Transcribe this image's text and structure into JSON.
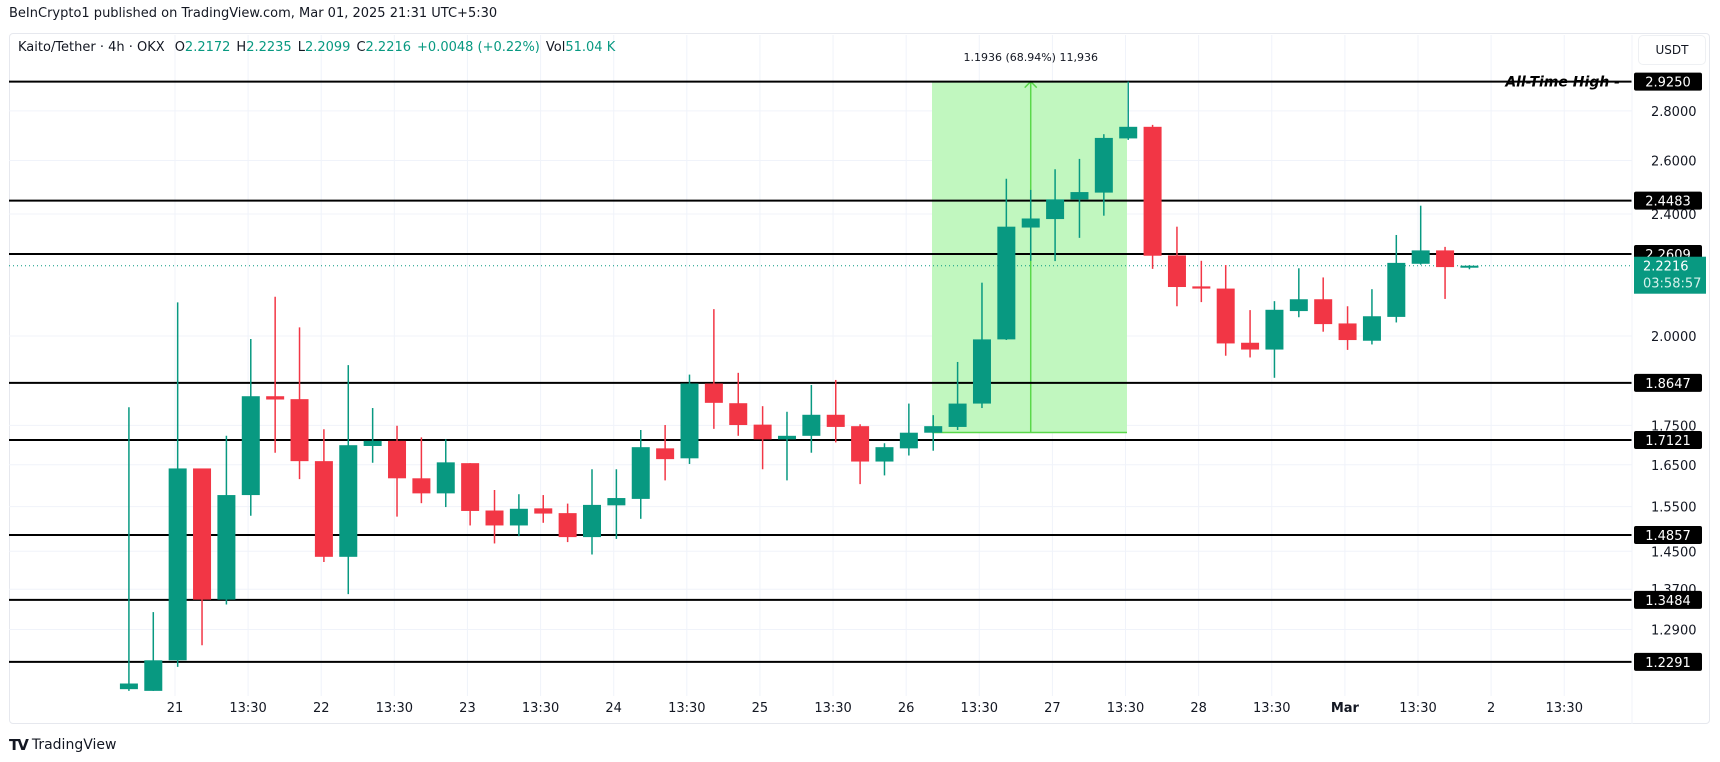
{
  "header": {
    "published": "BeInCrypto1 published on TradingView.com, Mar 01, 2025 21:31 UTC+5:30"
  },
  "legend": {
    "symbol": "Kaito/Tether · 4h · OKX",
    "open_label": "O",
    "open": "2.2172",
    "high_label": "H",
    "high": "2.2235",
    "low_label": "L",
    "low": "2.2099",
    "close_label": "C",
    "close": "2.2216",
    "change": "+0.0048 (+0.22%)",
    "vol_label": "Vol",
    "vol": "51.04 K"
  },
  "currency_button": "USDT",
  "footer": {
    "logo": "TradingView"
  },
  "colors": {
    "up": "#089981",
    "down": "#f23645",
    "level": "#000000",
    "measure_fill": "#c1f7bf",
    "measure_line": "#5ad84a"
  },
  "chart_data": {
    "type": "candlestick",
    "title": "Kaito/Tether · 4h · OKX",
    "ylabel": "USDT",
    "y_scale": "log",
    "ylim": [
      1.168,
      3.136
    ],
    "xlim": [
      -4.92,
      61.67
    ],
    "grid": true,
    "x_ticks": [
      {
        "index": 1.89,
        "label": "21"
      },
      {
        "index": 4.89,
        "label": "13:30"
      },
      {
        "index": 7.89,
        "label": "22"
      },
      {
        "index": 10.89,
        "label": "13:30"
      },
      {
        "index": 13.89,
        "label": "23"
      },
      {
        "index": 16.89,
        "label": "13:30"
      },
      {
        "index": 19.89,
        "label": "24"
      },
      {
        "index": 22.89,
        "label": "13:30"
      },
      {
        "index": 25.89,
        "label": "25"
      },
      {
        "index": 28.89,
        "label": "13:30"
      },
      {
        "index": 31.89,
        "label": "26"
      },
      {
        "index": 34.89,
        "label": "13:30"
      },
      {
        "index": 37.89,
        "label": "27"
      },
      {
        "index": 40.89,
        "label": "13:30"
      },
      {
        "index": 43.89,
        "label": "28"
      },
      {
        "index": 46.89,
        "label": "13:30"
      },
      {
        "index": 49.89,
        "label": "Mar",
        "bold": true
      },
      {
        "index": 52.89,
        "label": "13:30"
      },
      {
        "index": 55.89,
        "label": "2"
      },
      {
        "index": 58.89,
        "label": "13:30"
      }
    ],
    "y_ticks": [
      {
        "value": 2.8,
        "label": "2.8000"
      },
      {
        "value": 2.6,
        "label": "2.6000"
      },
      {
        "value": 2.4,
        "label": "2.4000"
      },
      {
        "value": 2.0,
        "label": "2.0000"
      },
      {
        "value": 1.75,
        "label": "1.7500"
      },
      {
        "value": 1.65,
        "label": "1.6500"
      },
      {
        "value": 1.55,
        "label": "1.5500"
      },
      {
        "value": 1.45,
        "label": "1.4500"
      },
      {
        "value": 1.37,
        "label": "1.3700"
      },
      {
        "value": 1.29,
        "label": "1.2900"
      }
    ],
    "levels": [
      {
        "value": 2.925,
        "label": "2.9250"
      },
      {
        "value": 2.4483,
        "label": "2.4483"
      },
      {
        "value": 2.2609,
        "label": "2.2609"
      },
      {
        "value": 1.8647,
        "label": "1.8647"
      },
      {
        "value": 1.7121,
        "label": "1.7121"
      },
      {
        "value": 1.4857,
        "label": "1.4857"
      },
      {
        "value": 1.3484,
        "label": "1.3484"
      },
      {
        "value": 1.2291,
        "label": "1.2291"
      }
    ],
    "annotation": {
      "label": "All-Time High -",
      "value": 2.925
    },
    "current_price": {
      "value": 2.2216,
      "label": "2.2216",
      "countdown": "03:58:57"
    },
    "measure": {
      "from_index": 32.95,
      "to_index": 40.95,
      "low": 1.7314,
      "high": 2.925,
      "arrow_index": 37,
      "label": "1.1936 (68.94%) 11,936"
    },
    "candles": [
      [
        1.18,
        1.798,
        1.177,
        1.19
      ],
      [
        1.177,
        1.324,
        1.177,
        1.232
      ],
      [
        1.232,
        2.103,
        1.22,
        1.641
      ],
      [
        1.641,
        1.641,
        1.26,
        1.349
      ],
      [
        1.349,
        1.723,
        1.339,
        1.577
      ],
      [
        1.577,
        1.991,
        1.529,
        1.828
      ],
      [
        1.828,
        2.121,
        1.68,
        1.819
      ],
      [
        1.82,
        2.026,
        1.615,
        1.659
      ],
      [
        1.659,
        1.74,
        1.427,
        1.438
      ],
      [
        1.438,
        1.915,
        1.36,
        1.699
      ],
      [
        1.697,
        1.796,
        1.655,
        1.71
      ],
      [
        1.71,
        1.749,
        1.527,
        1.617
      ],
      [
        1.617,
        1.719,
        1.558,
        1.581
      ],
      [
        1.581,
        1.714,
        1.549,
        1.656
      ],
      [
        1.654,
        1.654,
        1.507,
        1.54
      ],
      [
        1.541,
        1.589,
        1.467,
        1.507
      ],
      [
        1.507,
        1.579,
        1.483,
        1.545
      ],
      [
        1.546,
        1.577,
        1.513,
        1.534
      ],
      [
        1.535,
        1.557,
        1.47,
        1.481
      ],
      [
        1.481,
        1.639,
        1.443,
        1.554
      ],
      [
        1.553,
        1.639,
        1.477,
        1.57
      ],
      [
        1.568,
        1.738,
        1.522,
        1.694
      ],
      [
        1.691,
        1.751,
        1.612,
        1.664
      ],
      [
        1.666,
        1.888,
        1.652,
        1.863
      ],
      [
        1.863,
        2.082,
        1.741,
        1.81
      ],
      [
        1.809,
        1.893,
        1.723,
        1.751
      ],
      [
        1.752,
        1.801,
        1.639,
        1.714
      ],
      [
        1.714,
        1.786,
        1.612,
        1.723
      ],
      [
        1.723,
        1.859,
        1.68,
        1.778
      ],
      [
        1.778,
        1.873,
        1.706,
        1.746
      ],
      [
        1.748,
        1.753,
        1.603,
        1.658
      ],
      [
        1.658,
        1.704,
        1.624,
        1.694
      ],
      [
        1.691,
        1.808,
        1.673,
        1.731
      ],
      [
        1.731,
        1.777,
        1.685,
        1.748
      ],
      [
        1.746,
        1.924,
        1.738,
        1.808
      ],
      [
        1.808,
        2.166,
        1.796,
        1.99
      ],
      [
        1.99,
        2.53,
        1.988,
        2.355
      ],
      [
        2.352,
        2.488,
        2.238,
        2.384
      ],
      [
        2.382,
        2.566,
        2.237,
        2.453
      ],
      [
        2.453,
        2.606,
        2.316,
        2.48
      ],
      [
        2.478,
        2.704,
        2.394,
        2.689
      ],
      [
        2.687,
        2.925,
        2.681,
        2.734
      ],
      [
        2.734,
        2.742,
        2.211,
        2.255
      ],
      [
        2.256,
        2.355,
        2.091,
        2.152
      ],
      [
        2.154,
        2.238,
        2.104,
        2.147
      ],
      [
        2.147,
        2.224,
        1.942,
        1.978
      ],
      [
        1.98,
        2.079,
        1.937,
        1.96
      ],
      [
        1.96,
        2.107,
        1.879,
        2.08
      ],
      [
        2.076,
        2.213,
        2.057,
        2.113
      ],
      [
        2.113,
        2.183,
        2.013,
        2.036
      ],
      [
        2.038,
        2.091,
        1.959,
        1.988
      ],
      [
        1.986,
        2.145,
        1.975,
        2.06
      ],
      [
        2.058,
        2.326,
        2.041,
        2.231
      ],
      [
        2.228,
        2.43,
        2.225,
        2.273
      ],
      [
        2.273,
        2.285,
        2.114,
        2.217
      ],
      [
        2.2172,
        2.2235,
        2.2099,
        2.2216
      ]
    ]
  }
}
